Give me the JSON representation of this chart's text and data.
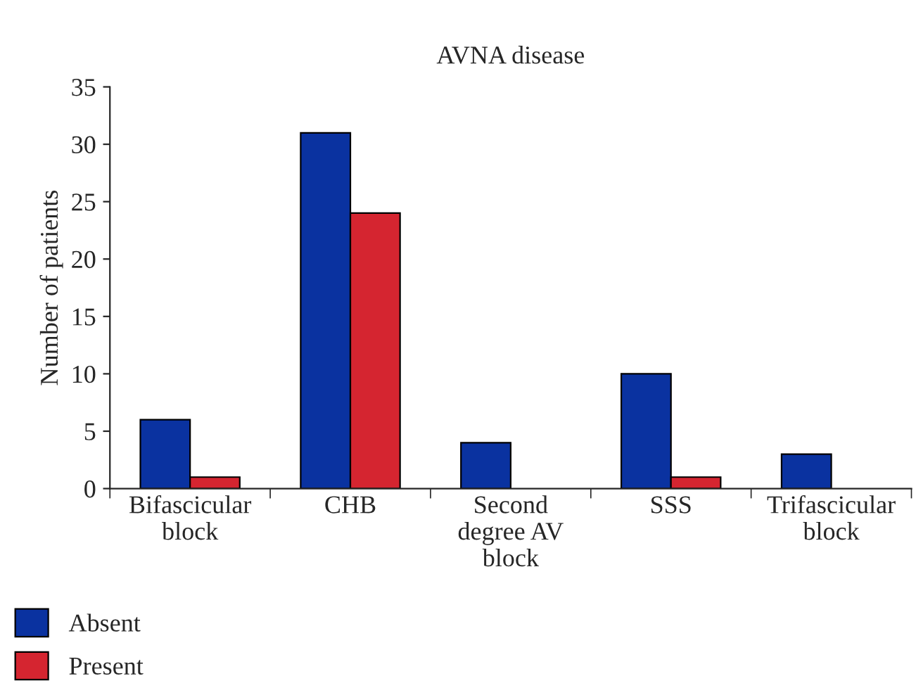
{
  "chart_data": {
    "type": "bar",
    "title": "AVNA disease",
    "ylabel": "Number of patients",
    "categories": [
      "Bifascicular\nblock",
      "CHB",
      "Second\ndegree AV\nblock",
      "SSS",
      "Trifascicular\nblock"
    ],
    "series": [
      {
        "name": "Absent",
        "color": "#0a32a0",
        "values": [
          6,
          31,
          4,
          10,
          3
        ]
      },
      {
        "name": "Present",
        "color": "#d52530",
        "values": [
          1,
          24,
          null,
          1,
          null
        ]
      }
    ],
    "ylim": [
      0,
      35
    ],
    "yticks": [
      0,
      5,
      10,
      15,
      20,
      25,
      30,
      35
    ],
    "grid": false,
    "legend": "bottom left"
  }
}
